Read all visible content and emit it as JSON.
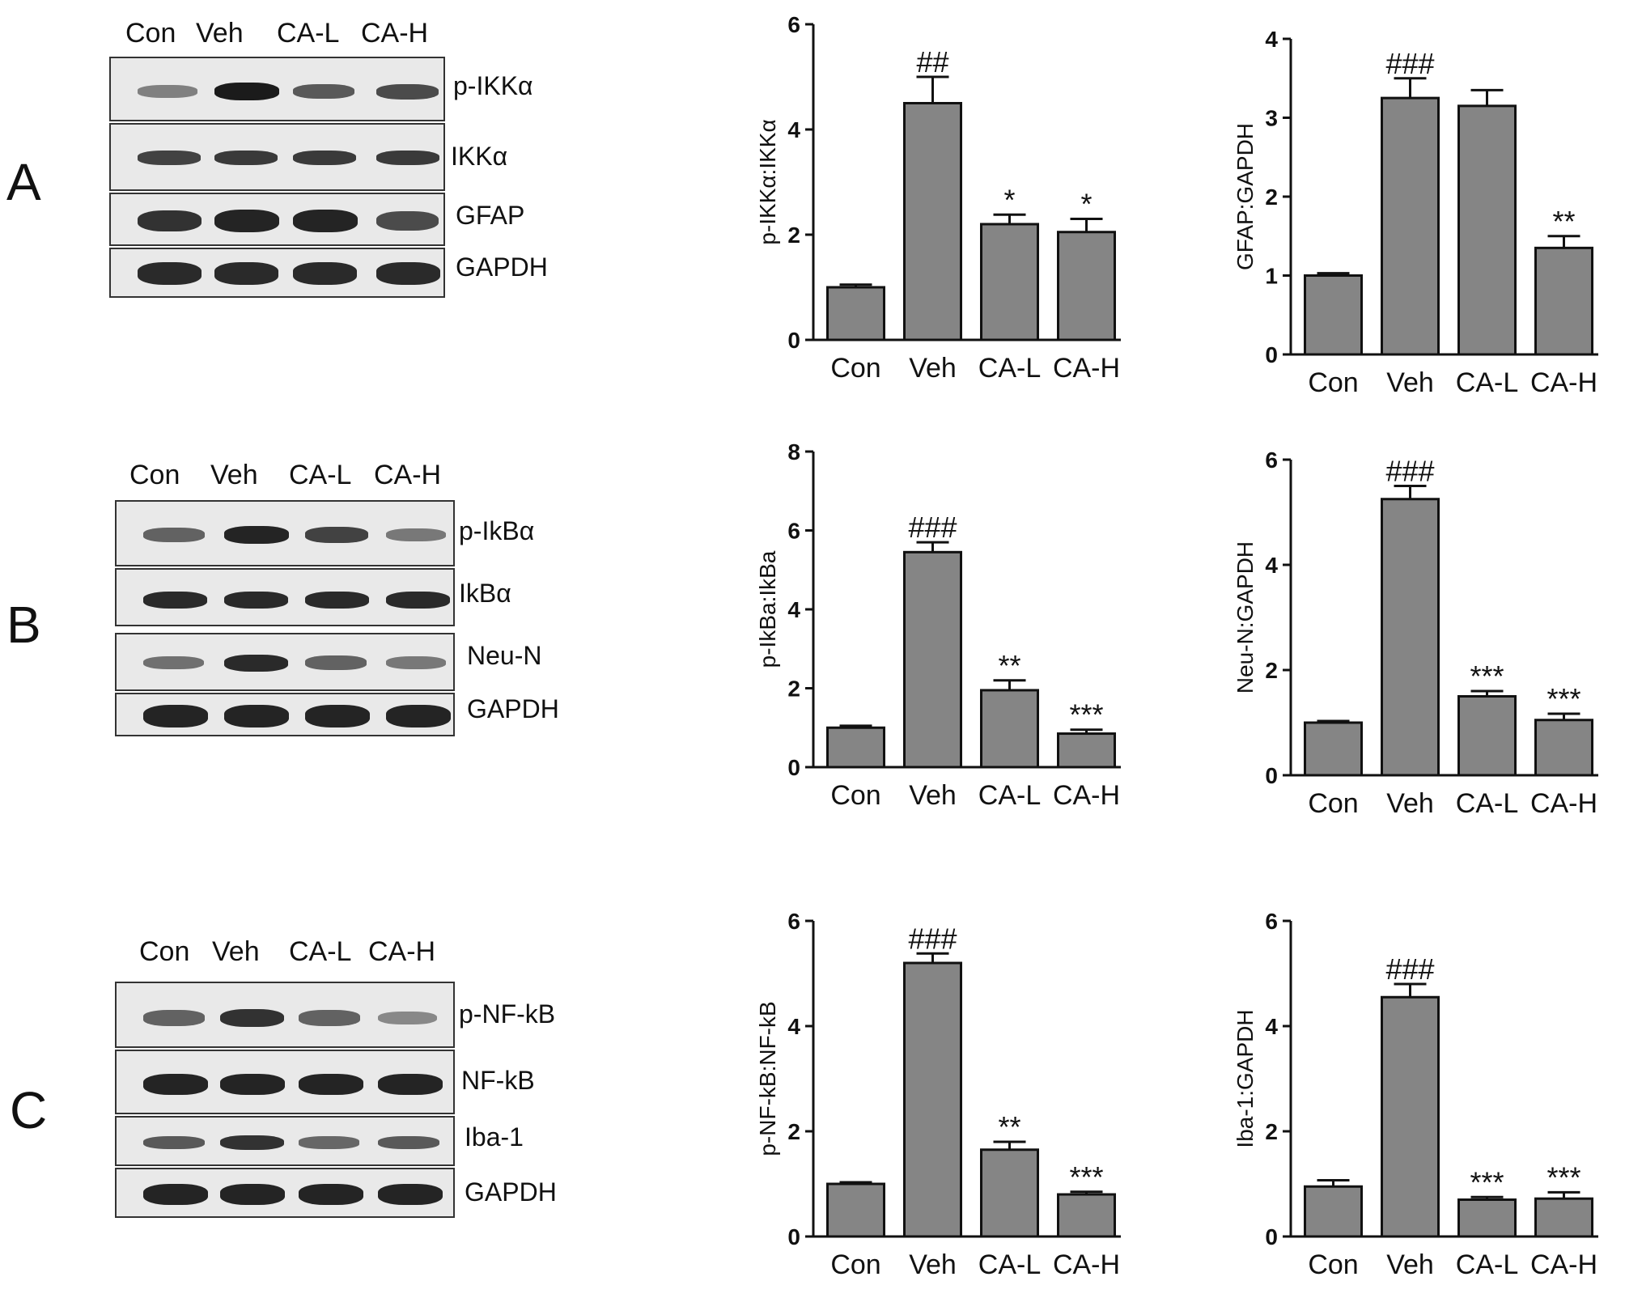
{
  "panels": [
    {
      "letter": "A",
      "blot": {
        "lanes": [
          "Con",
          "Veh",
          "CA-L",
          "CA-H"
        ],
        "bands": [
          {
            "label": "p-IKKα",
            "intensity": [
              0.35,
              1.0,
              0.6,
              0.7
            ]
          },
          {
            "label": "IKKα",
            "intensity": [
              0.75,
              0.8,
              0.8,
              0.8
            ]
          },
          {
            "label": "GFAP",
            "intensity": [
              0.85,
              0.95,
              0.95,
              0.7
            ]
          },
          {
            "label": "GAPDH",
            "intensity": [
              0.9,
              0.9,
              0.9,
              0.9
            ]
          }
        ]
      }
    },
    {
      "letter": "B",
      "blot": {
        "lanes": [
          "Con",
          "Veh",
          "CA-L",
          "CA-H"
        ],
        "bands": [
          {
            "label": "p-IkBα",
            "intensity": [
              0.55,
              0.95,
              0.75,
              0.4
            ]
          },
          {
            "label": "IkBα",
            "intensity": [
              0.9,
              0.9,
              0.9,
              0.9
            ]
          },
          {
            "label": "Neu-N",
            "intensity": [
              0.45,
              0.9,
              0.55,
              0.4
            ]
          },
          {
            "label": "GAPDH",
            "intensity": [
              0.95,
              0.95,
              0.95,
              0.95
            ]
          }
        ]
      }
    },
    {
      "letter": "C",
      "blot": {
        "lanes": [
          "Con",
          "Veh",
          "CA-L",
          "CA-H"
        ],
        "bands": [
          {
            "label": "p-NF-kB",
            "intensity": [
              0.55,
              0.85,
              0.55,
              0.3
            ]
          },
          {
            "label": "NF-kB",
            "intensity": [
              0.95,
              0.95,
              0.95,
              0.95
            ]
          },
          {
            "label": "Iba-1",
            "intensity": [
              0.6,
              0.85,
              0.5,
              0.6
            ]
          },
          {
            "label": "GAPDH",
            "intensity": [
              0.95,
              0.95,
              0.95,
              0.95
            ]
          }
        ]
      }
    }
  ],
  "chart_data": [
    {
      "type": "bar",
      "categories": [
        "Con",
        "Veh",
        "CA-L",
        "CA-H"
      ],
      "values": [
        1.0,
        4.5,
        2.2,
        2.05
      ],
      "errors": [
        0.05,
        0.5,
        0.18,
        0.25
      ],
      "annotations": [
        "",
        "##",
        "*",
        "*"
      ],
      "ylabel": "p-IKKα:IKKα",
      "ylim": [
        0,
        6
      ],
      "yticks": [
        0,
        2,
        4,
        6
      ]
    },
    {
      "type": "bar",
      "categories": [
        "Con",
        "Veh",
        "CA-L",
        "CA-H"
      ],
      "values": [
        1.0,
        3.25,
        3.15,
        1.35
      ],
      "errors": [
        0.03,
        0.25,
        0.2,
        0.15
      ],
      "annotations": [
        "",
        "###",
        "",
        "**"
      ],
      "ylabel": "GFAP:GAPDH",
      "ylim": [
        0,
        4
      ],
      "yticks": [
        0,
        1,
        2,
        3,
        4
      ]
    },
    {
      "type": "bar",
      "categories": [
        "Con",
        "Veh",
        "CA-L",
        "CA-H"
      ],
      "values": [
        1.0,
        5.45,
        1.95,
        0.85
      ],
      "errors": [
        0.05,
        0.25,
        0.25,
        0.1
      ],
      "annotations": [
        "",
        "###",
        "**",
        "***"
      ],
      "ylabel": "p-IkBa:IkBa",
      "ylim": [
        0,
        8
      ],
      "yticks": [
        0,
        2,
        4,
        6,
        8
      ]
    },
    {
      "type": "bar",
      "categories": [
        "Con",
        "Veh",
        "CA-L",
        "CA-H"
      ],
      "values": [
        1.0,
        5.25,
        1.5,
        1.05
      ],
      "errors": [
        0.03,
        0.25,
        0.1,
        0.12
      ],
      "annotations": [
        "",
        "###",
        "***",
        "***"
      ],
      "ylabel": "Neu-N:GAPDH",
      "ylim": [
        0,
        6
      ],
      "yticks": [
        0,
        2,
        4,
        6
      ]
    },
    {
      "type": "bar",
      "categories": [
        "Con",
        "Veh",
        "CA-L",
        "CA-H"
      ],
      "values": [
        1.0,
        5.2,
        1.65,
        0.8
      ],
      "errors": [
        0.03,
        0.18,
        0.15,
        0.05
      ],
      "annotations": [
        "",
        "###",
        "**",
        "***"
      ],
      "ylabel": "p-NF-kB:NF-kB",
      "ylim": [
        0,
        6
      ],
      "yticks": [
        0,
        2,
        4,
        6
      ]
    },
    {
      "type": "bar",
      "categories": [
        "Con",
        "Veh",
        "CA-L",
        "CA-H"
      ],
      "values": [
        0.95,
        4.55,
        0.7,
        0.72
      ],
      "errors": [
        0.12,
        0.25,
        0.05,
        0.12
      ],
      "annotations": [
        "",
        "###",
        "***",
        "***"
      ],
      "ylabel": "Iba-1:GAPDH",
      "ylim": [
        0,
        6
      ],
      "yticks": [
        0,
        2,
        4,
        6
      ]
    }
  ]
}
